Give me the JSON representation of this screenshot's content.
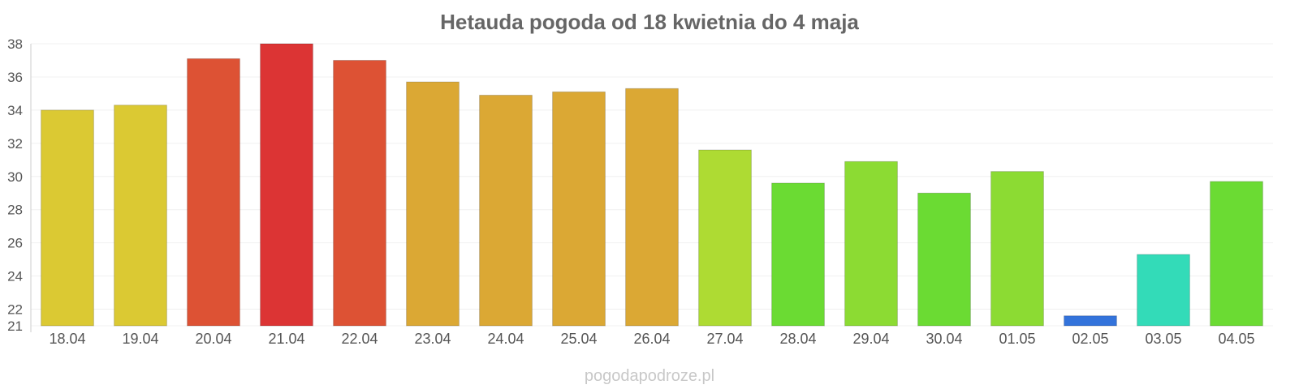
{
  "chart_data": {
    "type": "bar",
    "title": "Hetauda pogoda od 18 kwietnia do 4 maja",
    "xlabel": "",
    "ylabel": "",
    "ylim": [
      21,
      38
    ],
    "yticks": [
      21,
      22,
      24,
      26,
      28,
      30,
      32,
      34,
      36,
      38
    ],
    "grid": true,
    "legend": "none",
    "categories": [
      "18.04",
      "19.04",
      "20.04",
      "21.04",
      "22.04",
      "23.04",
      "24.04",
      "25.04",
      "26.04",
      "27.04",
      "28.04",
      "29.04",
      "30.04",
      "01.05",
      "02.05",
      "03.05",
      "04.05"
    ],
    "values": [
      34.0,
      34.3,
      37.1,
      38.0,
      37.0,
      35.7,
      34.9,
      35.1,
      35.3,
      31.6,
      29.6,
      30.9,
      29.0,
      30.3,
      21.6,
      25.3,
      29.7
    ],
    "colors": [
      "#dbc933",
      "#dbc933",
      "#dd5234",
      "#dc3434",
      "#dd5234",
      "#dba834",
      "#dba834",
      "#dba834",
      "#dba834",
      "#aedb33",
      "#6bdb33",
      "#8cdb33",
      "#6bdb33",
      "#8cdb33",
      "#3373db",
      "#33dbb8",
      "#6bdb33"
    ]
  },
  "watermark": "pogodapodroze.pl"
}
